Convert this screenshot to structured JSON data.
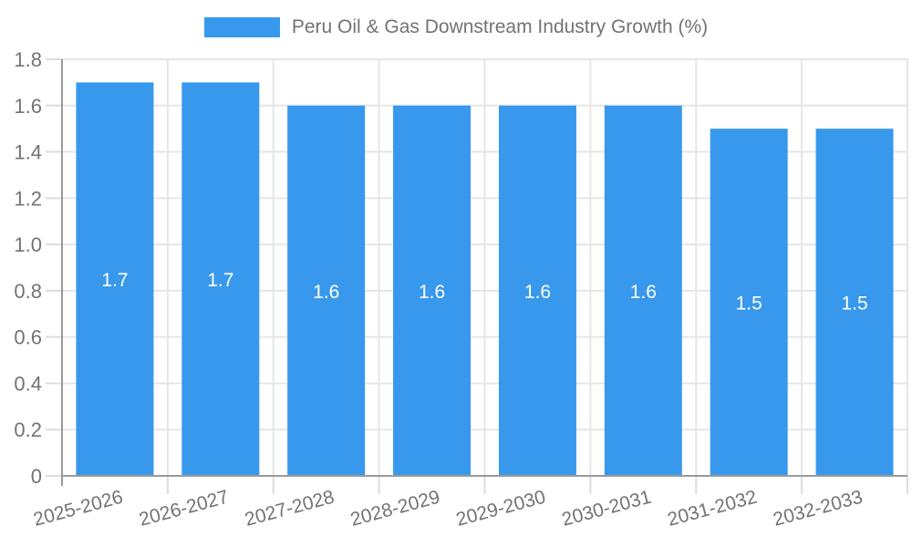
{
  "legend": {
    "label": "Peru Oil & Gas Downstream Industry Growth (%)"
  },
  "chart_data": {
    "type": "bar",
    "title": "Peru Oil & Gas Downstream Industry Growth (%)",
    "categories": [
      "2025-2026",
      "2026-2027",
      "2027-2028",
      "2028-2029",
      "2029-2030",
      "2030-2031",
      "2031-2032",
      "2032-2033"
    ],
    "values": [
      1.7,
      1.7,
      1.6,
      1.6,
      1.6,
      1.6,
      1.5,
      1.5
    ],
    "bar_labels": [
      "1.7",
      "1.7",
      "1.6",
      "1.6",
      "1.6",
      "1.6",
      "1.5",
      "1.5"
    ],
    "xlabel": "",
    "ylabel": "",
    "ylim": [
      0,
      1.8
    ],
    "ytick_step": 0.2,
    "ytick_labels": [
      "0",
      "0.2",
      "0.4",
      "0.6",
      "0.8",
      "1.0",
      "1.2",
      "1.4",
      "1.6",
      "1.8"
    ],
    "grid": true,
    "legend_position": "top",
    "colors": {
      "bar": "#3899ec",
      "grid": "#e6e6e6",
      "tick_mark": "#dcdcdc",
      "axis": "#9a9a9a",
      "tick_text": "#737373",
      "bar_label_text": "#ffffff"
    }
  }
}
